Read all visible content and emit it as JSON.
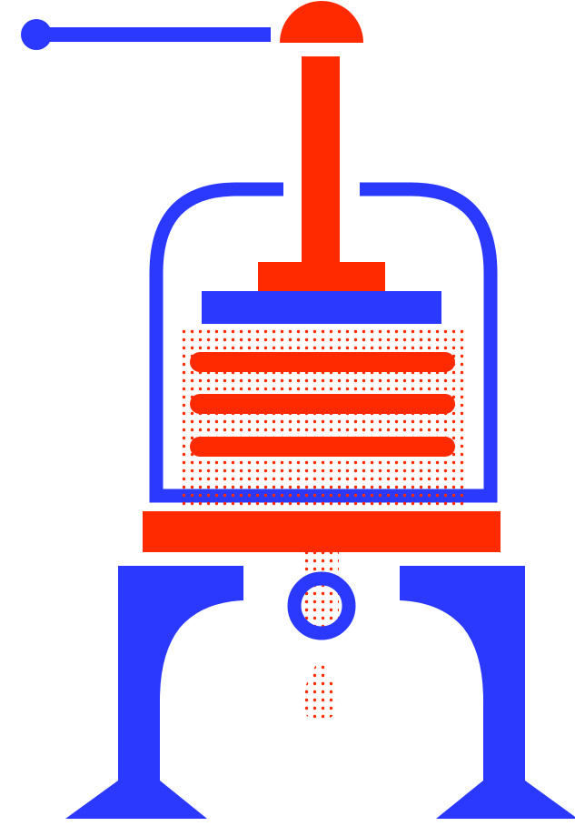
{
  "illustration": {
    "subject": "press-illustration",
    "colors": {
      "blue": "#2b39ff",
      "red": "#ff2a00",
      "background": "#ffffff"
    },
    "icons": {
      "handle": "handle-lever-icon",
      "cap": "dome-cap-icon",
      "screw": "screw-column-icon",
      "frame": "frame-arch-icon",
      "plates": "press-plates-icon",
      "layers": "pressed-layers-icon",
      "tray": "base-tray-icon",
      "legs": "stand-legs-icon",
      "ring": "spout-ring-icon",
      "drop": "dotted-drop-icon"
    }
  }
}
